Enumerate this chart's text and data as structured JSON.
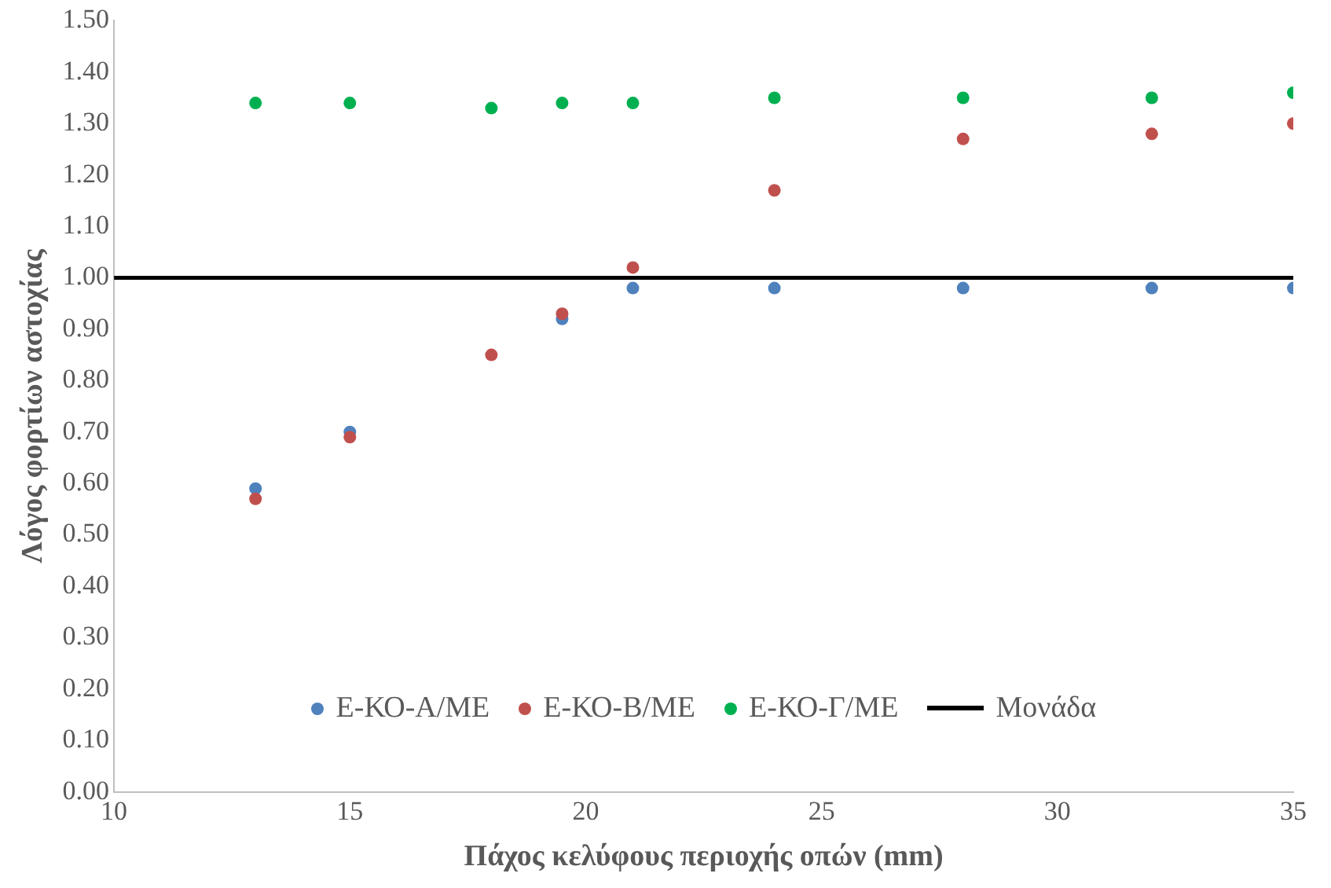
{
  "chart_data": {
    "type": "scatter",
    "xlabel": "Πάχος κελύφους περιοχής οπών (mm)",
    "ylabel": "Λόγος φορτίων αστοχίας",
    "x": [
      13,
      15,
      18,
      19.5,
      21,
      24,
      28,
      32,
      35
    ],
    "series": [
      {
        "name": "Ε-ΚΟ-Α/ΜΕ",
        "color": "#4f81bd",
        "values": [
          0.59,
          0.7,
          null,
          0.92,
          0.98,
          0.98,
          0.98,
          0.98,
          0.98
        ]
      },
      {
        "name": "Ε-ΚΟ-Β/ΜΕ",
        "color": "#c0504d",
        "values": [
          0.57,
          0.69,
          0.85,
          0.93,
          1.02,
          1.17,
          1.27,
          1.28,
          1.3
        ]
      },
      {
        "name": "Ε-ΚΟ-Γ/ΜΕ",
        "color": "#00b050",
        "values": [
          1.34,
          1.34,
          1.33,
          1.34,
          1.34,
          1.35,
          1.35,
          1.35,
          1.36
        ]
      },
      {
        "name": "Μονάδα",
        "type": "line",
        "color": "#000000",
        "x": [
          10,
          35
        ],
        "values": [
          1,
          1
        ],
        "marker": "none"
      }
    ],
    "xlim": [
      10,
      35
    ],
    "xticks": [
      10,
      15,
      20,
      25,
      30,
      35
    ],
    "ylim": [
      0,
      1.5
    ],
    "yticks": [
      {
        "value": 0,
        "label": "0.00"
      },
      {
        "value": 0.1,
        "label": "0.10"
      },
      {
        "value": 0.2,
        "label": "0.20"
      },
      {
        "value": 0.3,
        "label": "0.30"
      },
      {
        "value": 0.4,
        "label": "0.40"
      },
      {
        "value": 0.5,
        "label": "0.50"
      },
      {
        "value": 0.6,
        "label": "0.60"
      },
      {
        "value": 0.7,
        "label": "0.70"
      },
      {
        "value": 0.8,
        "label": "0.80"
      },
      {
        "value": 0.9,
        "label": "0.90"
      },
      {
        "value": 1.0,
        "label": "1.00"
      },
      {
        "value": 1.1,
        "label": "1.10"
      },
      {
        "value": 1.2,
        "label": "1.20"
      },
      {
        "value": 1.3,
        "label": "1.30"
      },
      {
        "value": 1.4,
        "label": "1.40"
      },
      {
        "value": 1.5,
        "label": "1.50"
      }
    ],
    "grid": false,
    "legend": "bottom",
    "marker": "circle"
  }
}
